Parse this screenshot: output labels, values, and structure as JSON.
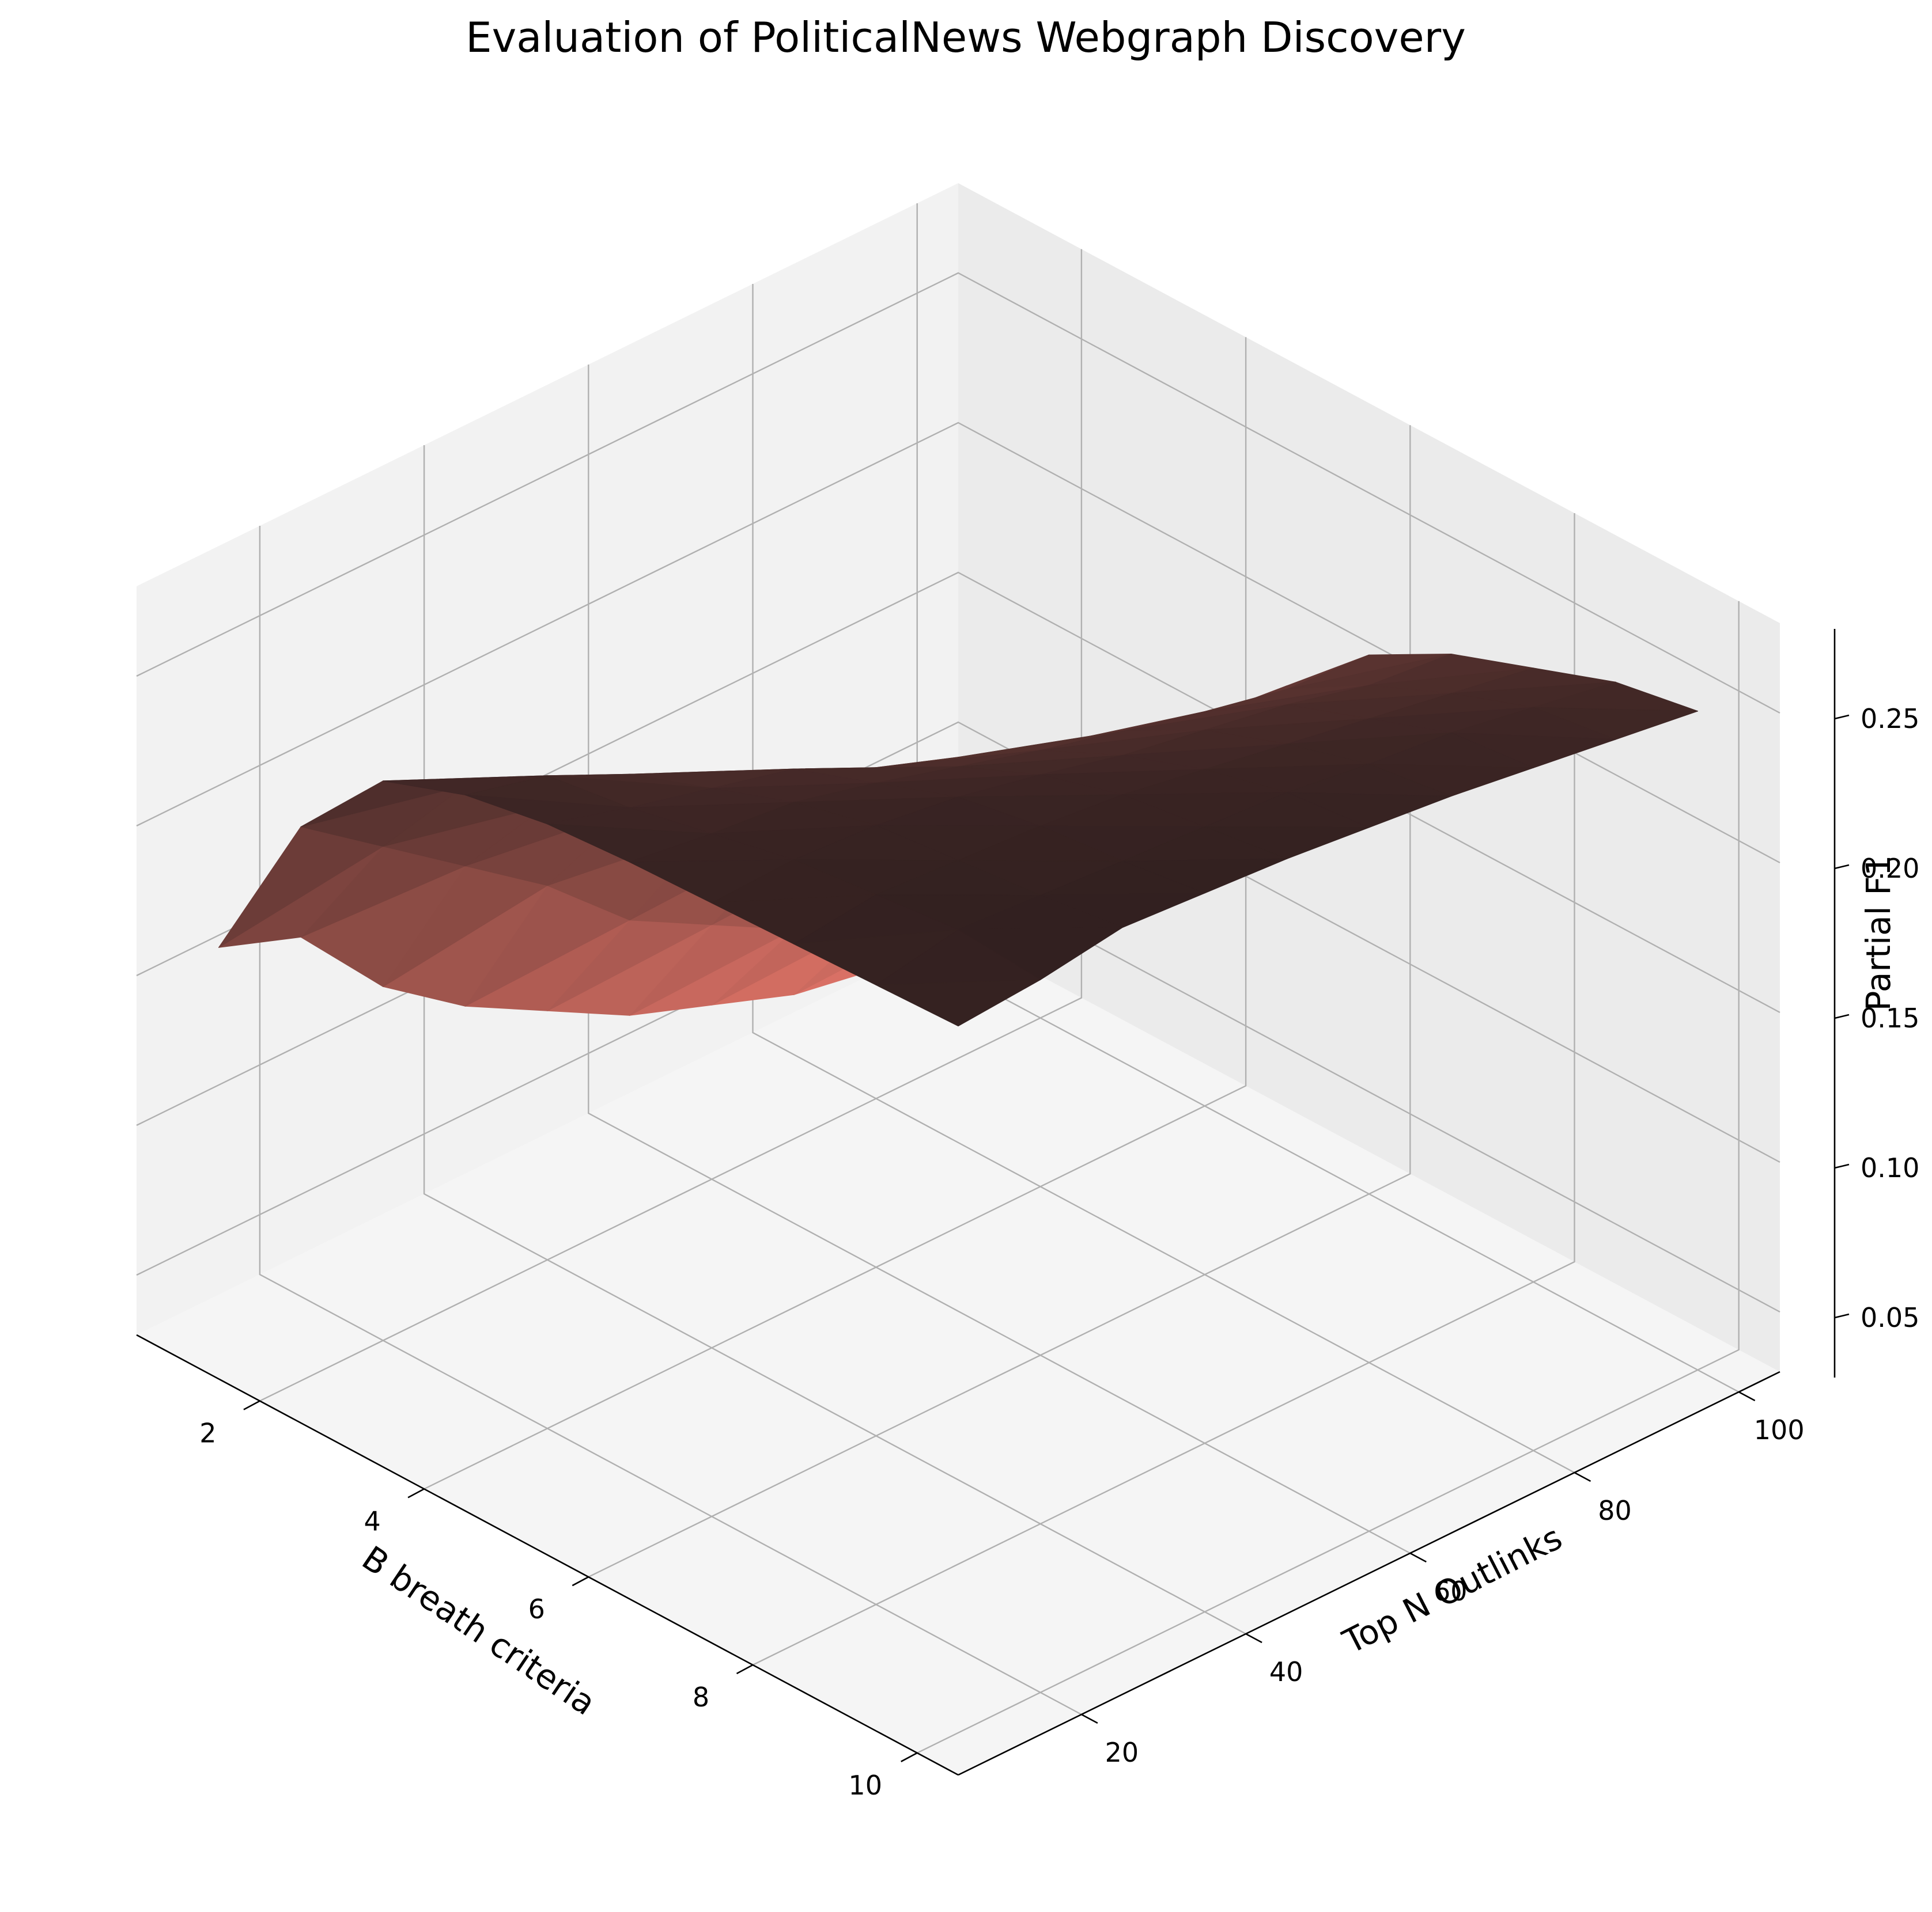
{
  "chart_data": {
    "type": "surface3d",
    "title": "Evaluation of PoliticalNews Webgraph Discovery",
    "xlabel": "B breath criteria",
    "ylabel": "Top N Outlinks",
    "zlabel": "Partial F1",
    "x_ticks": [
      "2",
      "4",
      "6",
      "8",
      "10"
    ],
    "y_ticks": [
      "20",
      "40",
      "60",
      "80",
      "100"
    ],
    "z_ticks": [
      "0.05",
      "0.10",
      "0.15",
      "0.20",
      "0.25"
    ],
    "x": [
      1,
      2,
      3,
      4,
      5,
      6,
      7,
      8,
      9,
      10
    ],
    "y": [
      10,
      20,
      30,
      40,
      50,
      60,
      70,
      80,
      90,
      100
    ],
    "xlim": [
      0.5,
      10.5
    ],
    "ylim": [
      5,
      105
    ],
    "zlim": [
      0.03,
      0.28
    ],
    "z": [
      [
        0.16,
        0.215,
        0.245,
        0.255,
        0.26,
        0.262,
        0.263,
        0.264,
        0.265,
        0.266
      ],
      [
        0.15,
        0.195,
        0.23,
        0.248,
        0.252,
        0.258,
        0.264,
        0.267,
        0.27,
        0.268
      ],
      [
        0.12,
        0.175,
        0.21,
        0.235,
        0.245,
        0.255,
        0.262,
        0.265,
        0.268,
        0.272
      ],
      [
        0.1,
        0.155,
        0.195,
        0.22,
        0.238,
        0.248,
        0.258,
        0.263,
        0.266,
        0.27
      ],
      [
        0.085,
        0.13,
        0.175,
        0.205,
        0.225,
        0.24,
        0.252,
        0.26,
        0.264,
        0.268
      ],
      [
        0.07,
        0.115,
        0.16,
        0.19,
        0.215,
        0.232,
        0.245,
        0.255,
        0.262,
        0.265
      ],
      [
        0.06,
        0.1,
        0.145,
        0.18,
        0.205,
        0.225,
        0.24,
        0.25,
        0.258,
        0.262
      ],
      [
        0.05,
        0.09,
        0.13,
        0.17,
        0.195,
        0.218,
        0.235,
        0.245,
        0.255,
        0.258
      ],
      [
        0.045,
        0.08,
        0.12,
        0.16,
        0.188,
        0.212,
        0.228,
        0.24,
        0.25,
        0.254
      ],
      [
        0.04,
        0.075,
        0.115,
        0.155,
        0.185,
        0.21,
        0.225,
        0.235,
        0.245,
        0.25
      ]
    ],
    "colormap": {
      "low": "#fa8072",
      "high": "#2b1d1d"
    },
    "pane_colors": {
      "left": "#f2f2f2",
      "right": "#ebebeb",
      "floor": "#f5f5f5"
    },
    "grid": true,
    "view": "elev 30, azim -45"
  }
}
